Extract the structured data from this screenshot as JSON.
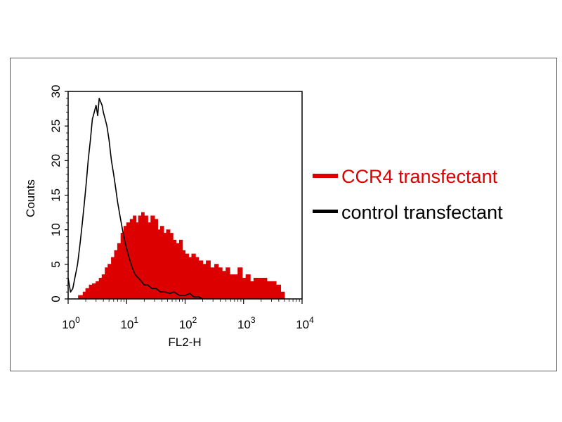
{
  "chart_data": {
    "type": "area",
    "xlabel": "FL2-H",
    "ylabel": "Counts",
    "x_scale": "log",
    "xlim": [
      1,
      10000
    ],
    "ylim": [
      0,
      30
    ],
    "x_ticks": [
      {
        "value": 1,
        "base": "10",
        "exp": "0"
      },
      {
        "value": 10,
        "base": "10",
        "exp": "1"
      },
      {
        "value": 100,
        "base": "10",
        "exp": "2"
      },
      {
        "value": 1000,
        "base": "10",
        "exp": "3"
      },
      {
        "value": 10000,
        "base": "10",
        "exp": "4"
      }
    ],
    "y_ticks": [
      0,
      5,
      10,
      15,
      20,
      25,
      30
    ],
    "legend_position": "right",
    "series": [
      {
        "name": "CCR4 transfectant",
        "color": "#dd0000",
        "style": "filled",
        "x": [
          1.2,
          1.5,
          1.8,
          2.0,
          2.3,
          2.6,
          3.0,
          3.4,
          3.8,
          4.3,
          4.8,
          5.5,
          6.2,
          7.0,
          8.0,
          9.0,
          10.0,
          11.5,
          13.0,
          14.5,
          16.0,
          18.0,
          20.0,
          23.0,
          26.0,
          30.0,
          34.0,
          38.0,
          43.0,
          48.0,
          55.0,
          62.0,
          70.0,
          80.0,
          90.0,
          100.0,
          115.0,
          130.0,
          150.0,
          170.0,
          200.0,
          230.0,
          270.0,
          320.0,
          370.0,
          430.0,
          500.0,
          580.0,
          680.0,
          800.0,
          950.0,
          1100.0,
          1300.0,
          1500.0,
          1800.0,
          2100.0,
          2500.0,
          3000.0,
          3600.0,
          4300.0,
          5000.0
        ],
        "y": [
          0,
          0.5,
          1,
          1.5,
          2,
          2.2,
          2.5,
          3,
          3.5,
          4.5,
          5,
          6,
          7,
          8,
          9.5,
          10.5,
          11,
          11.5,
          12,
          11,
          12,
          12.5,
          12,
          11,
          12,
          11.5,
          10,
          10.5,
          9.5,
          10,
          9.5,
          8.5,
          8,
          8.5,
          7,
          6.5,
          6,
          6.5,
          6,
          5.5,
          5,
          5.5,
          4.5,
          5,
          4.5,
          4,
          4.5,
          3.5,
          3.5,
          4.5,
          3,
          3.5,
          2.5,
          3,
          3,
          3,
          2.5,
          2.5,
          2,
          1,
          0
        ]
      },
      {
        "name": "control transfectant",
        "color": "#000000",
        "style": "line",
        "x": [
          1.0,
          1.1,
          1.2,
          1.3,
          1.45,
          1.6,
          1.75,
          1.9,
          2.05,
          2.2,
          2.4,
          2.6,
          2.8,
          3.0,
          3.2,
          3.4,
          3.6,
          3.8,
          4.0,
          4.3,
          4.6,
          5.0,
          5.5,
          6.0,
          6.5,
          7.0,
          7.7,
          8.5,
          9.5,
          11.0,
          12.5,
          14.0,
          16.0,
          18.0,
          20.0,
          23.0,
          27.0,
          32.0,
          38.0,
          45.0,
          55.0,
          65.0,
          80.0,
          100.0,
          120.0,
          140.0,
          170.0,
          200.0
        ],
        "y": [
          3,
          1,
          1.5,
          3,
          5,
          8,
          11,
          14,
          17,
          20,
          23,
          26,
          27,
          28,
          26.5,
          29,
          28.5,
          28,
          27,
          26,
          25,
          23,
          20,
          18,
          16,
          14,
          12,
          10,
          8,
          6,
          4.5,
          3.5,
          3,
          2.5,
          2,
          2,
          1.5,
          1.5,
          1,
          1,
          0.8,
          1,
          0.5,
          0.5,
          0.8,
          0.3,
          0.3,
          0
        ]
      }
    ]
  }
}
